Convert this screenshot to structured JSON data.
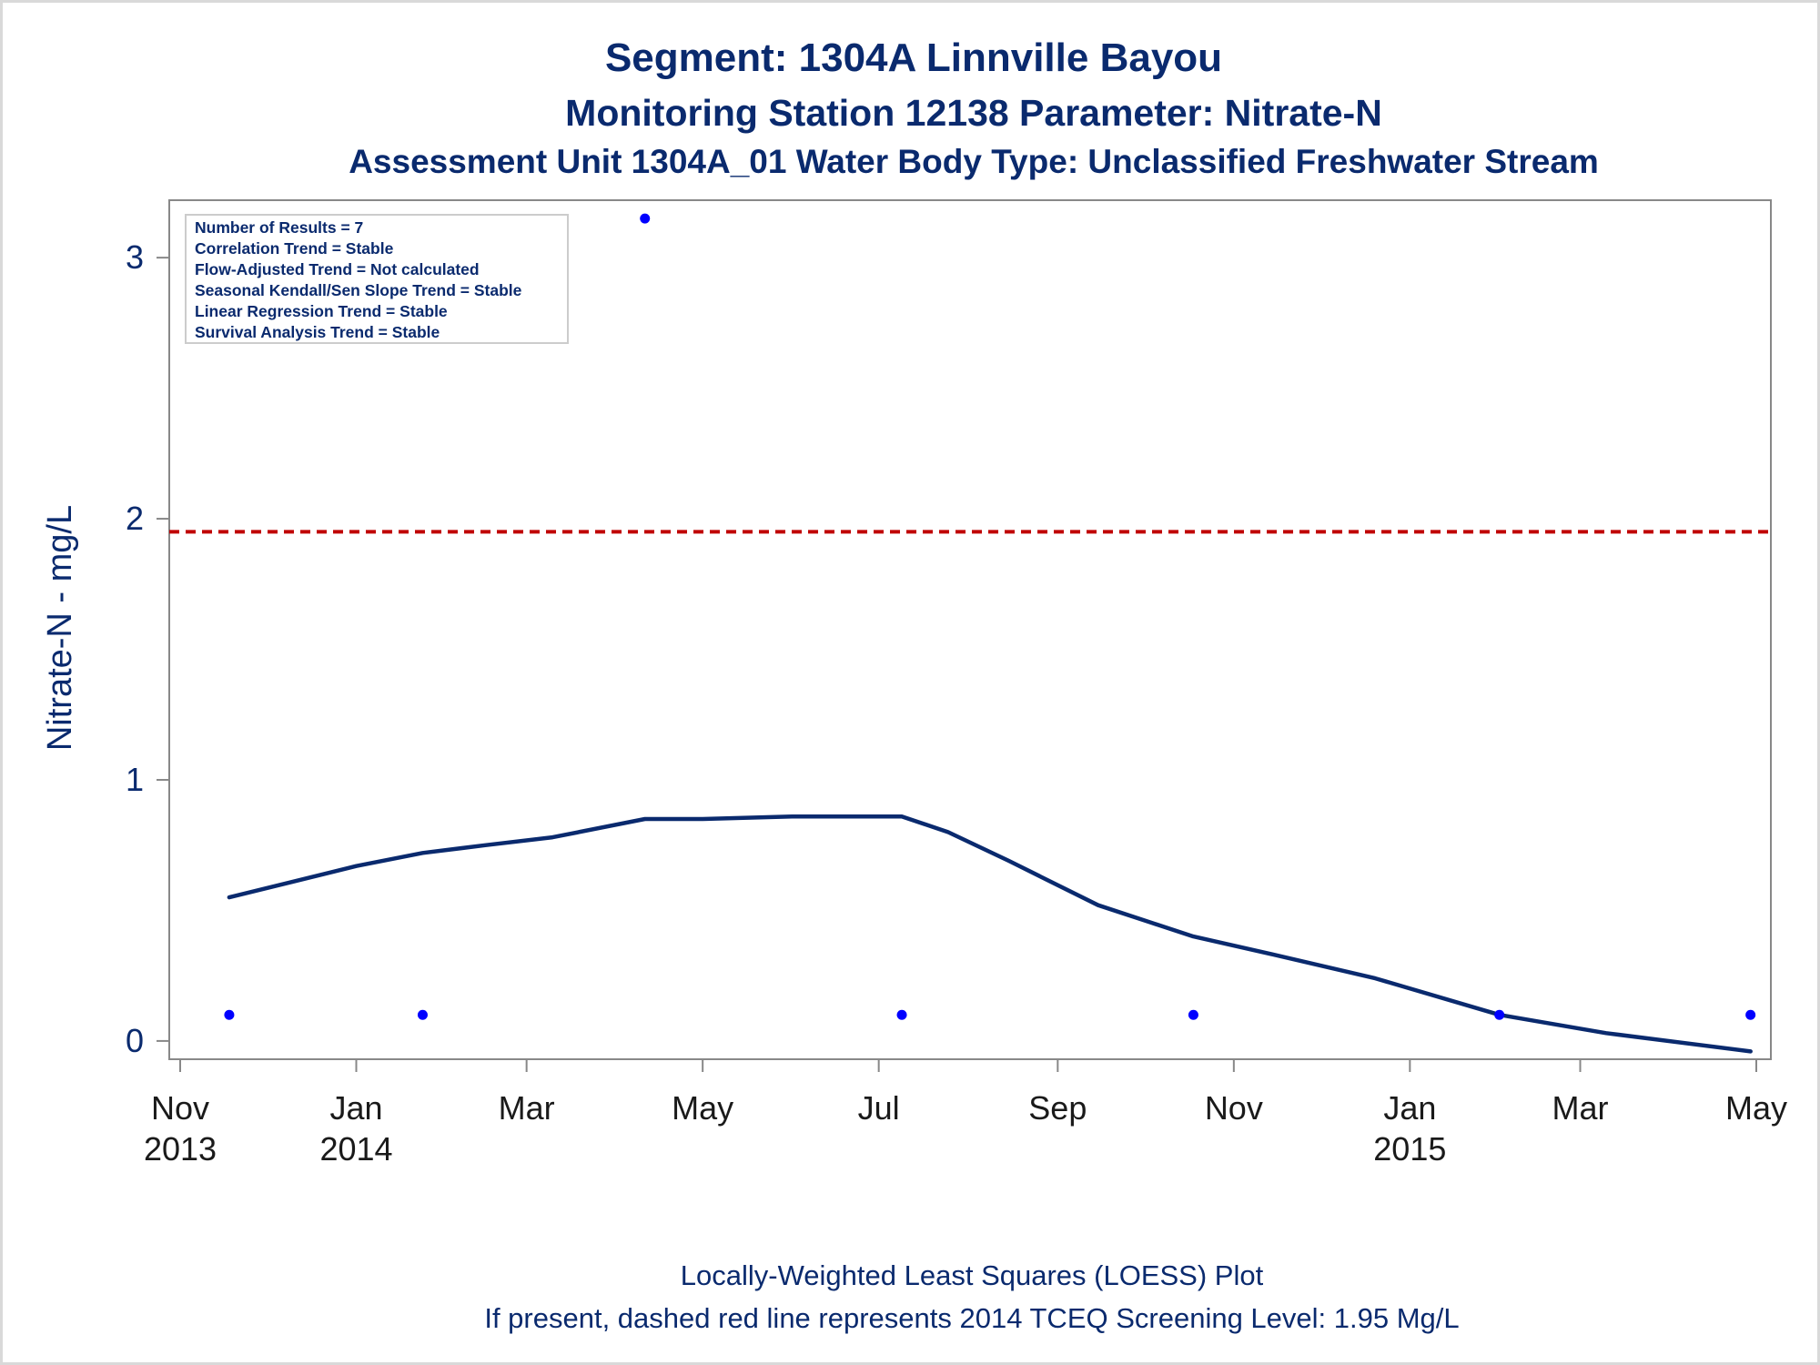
{
  "titles": {
    "line1": "Segment: 1304A  Linnville Bayou",
    "line2": "Monitoring Station 12138 Parameter: Nitrate-N",
    "line3": "Assessment Unit 1304A_01   Water Body Type: Unclassified Freshwater Stream"
  },
  "inset": {
    "lines": [
      "Number of Results = 7",
      "Correlation Trend = Stable",
      "Flow-Adjusted Trend = Not calculated",
      "Seasonal Kendall/Sen Slope Trend = Stable",
      "Linear Regression Trend = Stable",
      "Survival Analysis Trend = Stable"
    ]
  },
  "footnotes": {
    "line1": "Locally-Weighted Least Squares (LOESS) Plot",
    "line2": "If present, dashed red line represents 2014 TCEQ Screening Level: 1.95 Mg/L"
  },
  "colors": {
    "title": "#0a2a6e",
    "points": "#0000ff",
    "loess": "#0a2a6e",
    "screening_line": "#c00000",
    "axis": "#888888"
  },
  "chart_data": {
    "type": "scatter",
    "ylabel": "Nitrate-N - mg/L",
    "xlabel": "",
    "xlim": [
      "2013-11-01",
      "2015-05-01"
    ],
    "ylim": [
      -0.07,
      3.22
    ],
    "yticks": [
      0,
      1,
      2,
      3
    ],
    "xticks": [
      {
        "date": "2013-11-01",
        "month": "Nov",
        "year": "2013"
      },
      {
        "date": "2014-01-01",
        "month": "Jan",
        "year": "2014"
      },
      {
        "date": "2014-03-01",
        "month": "Mar",
        "year": ""
      },
      {
        "date": "2014-05-01",
        "month": "May",
        "year": ""
      },
      {
        "date": "2014-07-01",
        "month": "Jul",
        "year": ""
      },
      {
        "date": "2014-09-01",
        "month": "Sep",
        "year": ""
      },
      {
        "date": "2014-11-01",
        "month": "Nov",
        "year": ""
      },
      {
        "date": "2015-01-01",
        "month": "Jan",
        "year": "2015"
      },
      {
        "date": "2015-03-01",
        "month": "Mar",
        "year": ""
      },
      {
        "date": "2015-05-01",
        "month": "May",
        "year": ""
      }
    ],
    "points": [
      {
        "x": "2013-11-18",
        "y": 0.1
      },
      {
        "x": "2014-01-24",
        "y": 0.1
      },
      {
        "x": "2014-04-11",
        "y": 3.15
      },
      {
        "x": "2014-07-09",
        "y": 0.1
      },
      {
        "x": "2014-10-18",
        "y": 0.1
      },
      {
        "x": "2015-02-01",
        "y": 0.1
      },
      {
        "x": "2015-04-29",
        "y": 0.1
      }
    ],
    "loess": [
      {
        "x": "2013-11-18",
        "y": 0.55
      },
      {
        "x": "2013-12-10",
        "y": 0.61
      },
      {
        "x": "2014-01-01",
        "y": 0.67
      },
      {
        "x": "2014-01-24",
        "y": 0.72
      },
      {
        "x": "2014-02-15",
        "y": 0.75
      },
      {
        "x": "2014-03-10",
        "y": 0.78
      },
      {
        "x": "2014-04-11",
        "y": 0.85
      },
      {
        "x": "2014-05-01",
        "y": 0.85
      },
      {
        "x": "2014-06-01",
        "y": 0.86
      },
      {
        "x": "2014-07-09",
        "y": 0.86
      },
      {
        "x": "2014-07-25",
        "y": 0.8
      },
      {
        "x": "2014-08-15",
        "y": 0.69
      },
      {
        "x": "2014-09-15",
        "y": 0.52
      },
      {
        "x": "2014-10-18",
        "y": 0.4
      },
      {
        "x": "2014-11-15",
        "y": 0.33
      },
      {
        "x": "2014-12-20",
        "y": 0.24
      },
      {
        "x": "2015-02-01",
        "y": 0.1
      },
      {
        "x": "2015-03-10",
        "y": 0.03
      },
      {
        "x": "2015-04-29",
        "y": -0.04
      }
    ],
    "screening_level": 1.95
  }
}
